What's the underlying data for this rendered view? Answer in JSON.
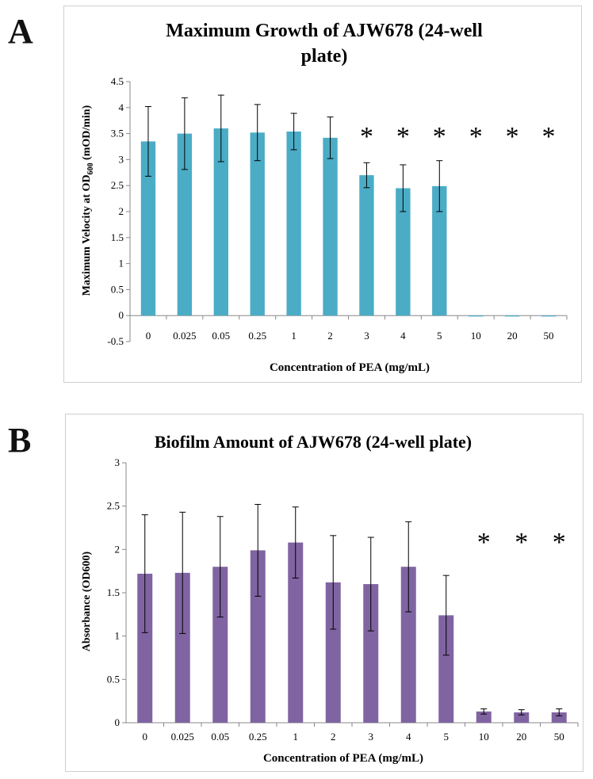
{
  "panels": [
    {
      "letter": "A"
    },
    {
      "letter": "B"
    }
  ],
  "chart_data": [
    {
      "type": "bar",
      "title": "Maximum Growth of AJW678 (24-well plate)",
      "xlabel": "Concentration of PEA (mg/mL)",
      "ylabel": "Maximum Velocity at OD600 (mOD/min)",
      "categories": [
        "0",
        "0.025",
        "0.05",
        "0.25",
        "1",
        "2",
        "3",
        "4",
        "5",
        "10",
        "20",
        "50"
      ],
      "values": [
        3.35,
        3.5,
        3.6,
        3.52,
        3.54,
        3.42,
        2.7,
        2.45,
        2.49,
        -0.01,
        -0.01,
        -0.01
      ],
      "error": [
        0.67,
        0.69,
        0.64,
        0.54,
        0.35,
        0.4,
        0.24,
        0.45,
        0.49,
        0.0,
        0.0,
        0.0
      ],
      "significance": [
        "",
        "",
        "",
        "",
        "",
        "",
        "*",
        "*",
        "*",
        "*",
        "*",
        "*"
      ],
      "ylim": [
        -0.5,
        4.5
      ],
      "yticks": [
        "-0.5",
        "0",
        "0.5",
        "1",
        "1.5",
        "2",
        "2.5",
        "3",
        "3.5",
        "4",
        "4.5"
      ],
      "color": "#4bacc6",
      "grid": false,
      "legend": "none"
    },
    {
      "type": "bar",
      "title": "Biofilm Amount of AJW678 (24-well plate)",
      "xlabel": "Concentration of PEA (mg/mL)",
      "ylabel": "Absorbance (OD600)",
      "categories": [
        "0",
        "0.025",
        "0.05",
        "0.25",
        "1",
        "2",
        "3",
        "4",
        "5",
        "10",
        "20",
        "50"
      ],
      "values": [
        1.72,
        1.73,
        1.8,
        1.99,
        2.08,
        1.62,
        1.6,
        1.8,
        1.24,
        0.13,
        0.12,
        0.12
      ],
      "error": [
        0.68,
        0.7,
        0.58,
        0.53,
        0.41,
        0.54,
        0.54,
        0.52,
        0.46,
        0.03,
        0.03,
        0.04
      ],
      "significance": [
        "",
        "",
        "",
        "",
        "",
        "",
        "",
        "",
        "",
        "*",
        "*",
        "*"
      ],
      "ylim": [
        0,
        3
      ],
      "yticks": [
        "0",
        "0.5",
        "1",
        "1.5",
        "2",
        "2.5",
        "3"
      ],
      "color": "#8064a2",
      "grid": false,
      "legend": "none"
    }
  ]
}
